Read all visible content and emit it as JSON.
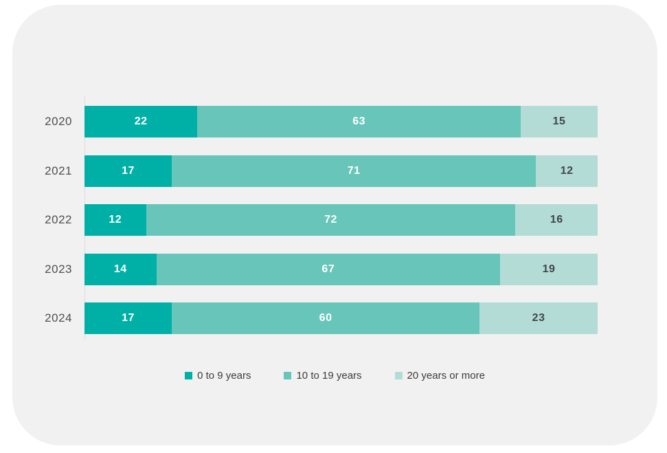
{
  "chart_data": {
    "type": "bar",
    "orientation": "horizontal",
    "stacked": true,
    "unit": "percent",
    "xlim": [
      0,
      100
    ],
    "grid": false,
    "legend_position": "bottom",
    "categories": [
      "2020",
      "2021",
      "2022",
      "2023",
      "2024"
    ],
    "series": [
      {
        "name": "0 to 9 years",
        "color": "#00b0a7",
        "values": [
          22,
          17,
          12,
          14,
          17
        ]
      },
      {
        "name": "10 to 19 years",
        "color": "#68c5b9",
        "values": [
          63,
          71,
          72,
          67,
          60
        ]
      },
      {
        "name": "20 years or more",
        "color": "#b4dcd7",
        "values": [
          15,
          12,
          16,
          19,
          23
        ]
      }
    ]
  },
  "colors": {
    "page_background": "#ffffff",
    "card_background": "#f1f1f2",
    "axis_line": "#dedede",
    "category_label_text": "#4f4f4f",
    "value_text_on_dark": "#ffffff",
    "value_text_on_light": "#3f4747",
    "legend_text": "#3c3c3c"
  }
}
